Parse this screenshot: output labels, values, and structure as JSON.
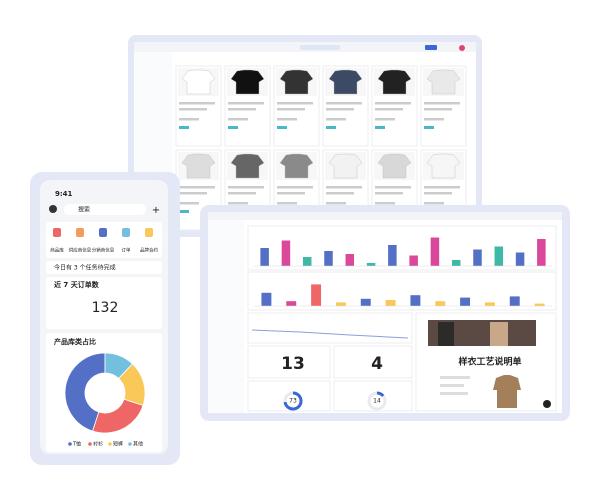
{
  "phone": {
    "time": "9:41",
    "search": "搜索",
    "shortcuts": [
      "商品库",
      "供应商信息",
      "分销商信息",
      "订单",
      "品牌合约"
    ],
    "task": "今日有 3 个任务待完成",
    "orders_title": "近 7 天订单数",
    "orders_value": "132",
    "pie_title": "产品库类占比",
    "pie": {
      "type": "pie",
      "values": [
        45,
        25,
        18,
        12
      ],
      "labels": [
        "T恤",
        "衬衫",
        "短裤",
        "其他"
      ],
      "colors": [
        "#5470c6",
        "#ee6666",
        "#fac858",
        "#73c0de"
      ]
    }
  },
  "dashboard": {
    "bars1": {
      "type": "bar",
      "ylim": [
        0,
        100
      ],
      "values": [
        60,
        85,
        30,
        50,
        40,
        10,
        70,
        35,
        95,
        20,
        55,
        65,
        45,
        90
      ],
      "colors": [
        "#5470c6",
        "#d9489b",
        "#3fb8a5",
        "#5470c6",
        "#d9489b",
        "#3fb8a5",
        "#5470c6",
        "#d9489b",
        "#d9489b",
        "#3fb8a5",
        "#5470c6",
        "#3fb8a5",
        "#5470c6",
        "#d9489b"
      ]
    },
    "bars2": {
      "type": "bar",
      "ylim": [
        0,
        100
      ],
      "values": [
        55,
        20,
        90,
        15,
        30,
        25,
        45,
        20,
        35,
        15,
        40,
        10
      ],
      "colors": [
        "#5470c6",
        "#d9489b",
        "#ee6666",
        "#fac858",
        "#5470c6",
        "#fac858",
        "#5470c6",
        "#fac858",
        "#5470c6",
        "#fac858",
        "#5470c6",
        "#fac858"
      ]
    },
    "kpi1": "13",
    "kpi2": "4",
    "gauge1": 73,
    "gauge2": 14,
    "card_title": "样衣工艺说明单"
  }
}
